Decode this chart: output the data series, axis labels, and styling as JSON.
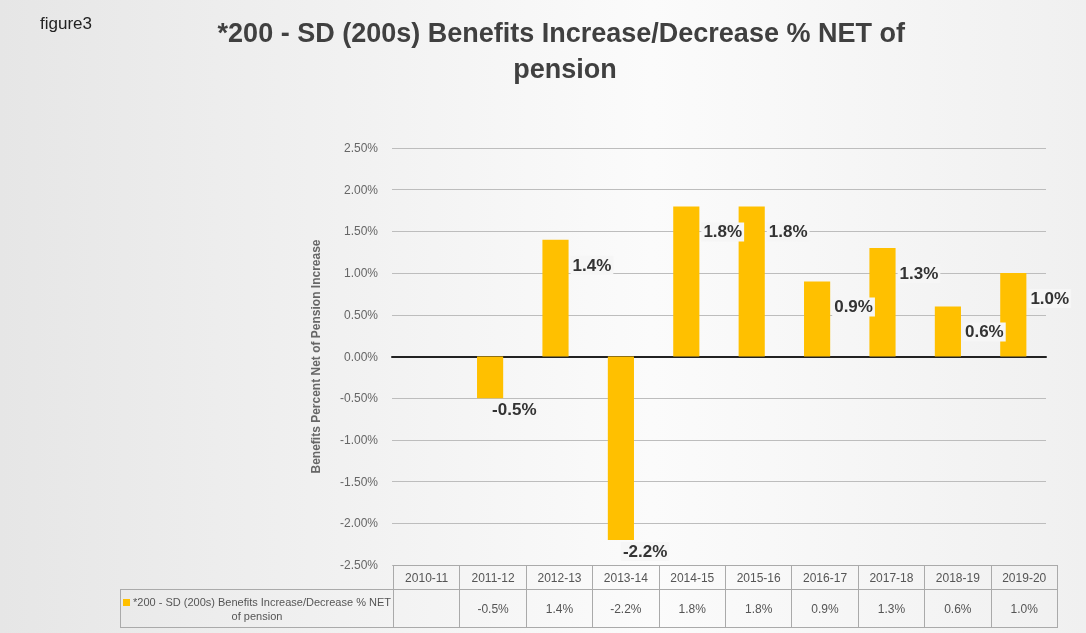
{
  "chart_data": {
    "type": "bar",
    "title": "*200 - SD (200s) Benefits Increase/Decrease % NET of pension",
    "ylabel": "Benefits Percent Net of Pension Increase",
    "annotations": [
      "figure3"
    ],
    "categories": [
      "2010-11",
      "2011-12",
      "2012-13",
      "2013-14",
      "2014-15",
      "2015-16",
      "2016-17",
      "2017-18",
      "2018-19",
      "2019-20"
    ],
    "series": [
      {
        "name": "*200 - SD (200s) Benefits Increase/Decrease % NET of pension",
        "color": "#ffc000",
        "values": [
          null,
          -0.5,
          1.4,
          -2.2,
          1.8,
          1.8,
          0.9,
          1.3,
          0.6,
          1.0
        ],
        "value_labels": [
          null,
          "-0.5%",
          "1.4%",
          "-2.2%",
          "1.8%",
          "1.8%",
          "0.9%",
          "1.3%",
          "0.6%",
          "1.0%"
        ]
      }
    ],
    "ylim": [
      -2.5,
      2.5
    ],
    "yticks": [
      {
        "value": -2.5,
        "label": "-2.50%"
      },
      {
        "value": -2.0,
        "label": "-2.00%"
      },
      {
        "value": -1.5,
        "label": "-1.50%"
      },
      {
        "value": -1.0,
        "label": "-1.00%"
      },
      {
        "value": -0.5,
        "label": "-0.50%"
      },
      {
        "value": 0,
        "label": "0.00%"
      },
      {
        "value": 0.5,
        "label": "0.50%"
      },
      {
        "value": 1.0,
        "label": "1.00%"
      },
      {
        "value": 1.5,
        "label": "1.50%"
      },
      {
        "value": 2.0,
        "label": "2.00%"
      },
      {
        "value": 2.5,
        "label": "2.50%"
      }
    ],
    "grid": "y",
    "legend": "bottom"
  }
}
